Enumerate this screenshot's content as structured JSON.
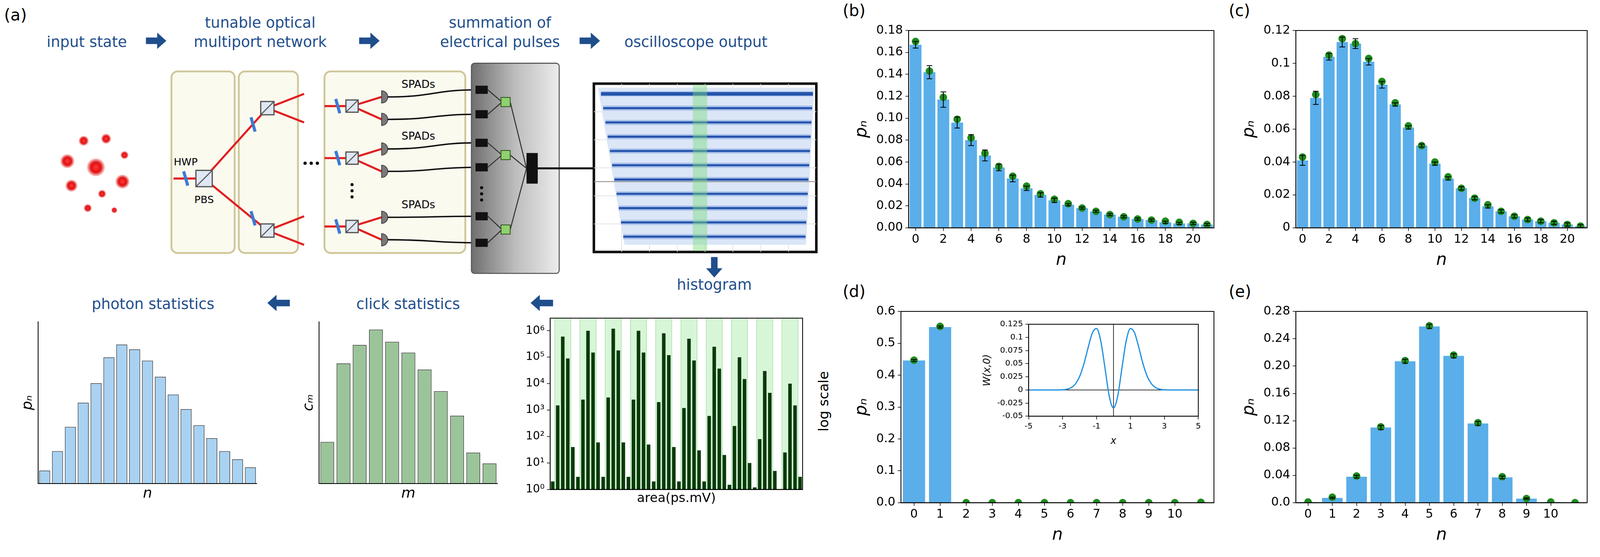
{
  "diagram": {
    "panel_label": "(a)",
    "labels": {
      "input": "input state",
      "network": "tunable optical multiport network",
      "summation": "summation of electrical pulses",
      "oscilloscope": "oscilloscope output",
      "histogram": "histogram",
      "clicks": "click statistics",
      "photons": "photon statistics"
    },
    "hwp": "HWP",
    "pbs": "PBS",
    "detectors": [
      "SPADs",
      "SPADs",
      "SPADs"
    ]
  },
  "chart_data": [
    {
      "type": "bar",
      "x_label": "n",
      "y_label": "pₙ",
      "tick_labels": false,
      "color": "#a9d2f2",
      "categories": [
        null,
        null,
        null,
        null,
        null,
        null,
        null,
        null,
        null,
        null,
        null,
        null,
        null,
        null,
        null,
        null,
        null
      ],
      "values": [
        0.08,
        0.2,
        0.35,
        0.5,
        0.62,
        0.78,
        0.86,
        0.83,
        0.76,
        0.66,
        0.55,
        0.46,
        0.36,
        0.28,
        0.2,
        0.15,
        0.1
      ],
      "ylim": [
        0,
        1
      ]
    },
    {
      "type": "bar",
      "x_label": "m",
      "y_label": "cₘ",
      "tick_labels": false,
      "color": "#9cc49a",
      "categories": [
        null,
        null,
        null,
        null,
        null,
        null,
        null,
        null,
        null,
        null,
        null
      ],
      "values": [
        0.27,
        0.78,
        0.9,
        1.0,
        0.92,
        0.85,
        0.74,
        0.6,
        0.44,
        0.2,
        0.13
      ],
      "ylim": [
        0,
        1.05
      ]
    },
    {
      "type": "bar",
      "x_label": "area(ps.mV)",
      "annotations": [
        "log scale"
      ],
      "log": "y",
      "tick_labels": "y",
      "color": "#0a3a0a",
      "categories": [
        null,
        null,
        null,
        null,
        null,
        null,
        null,
        null,
        null,
        null,
        null,
        null,
        null,
        null,
        null,
        null,
        null,
        null,
        null,
        null,
        null,
        null,
        null,
        null,
        null,
        null,
        null,
        null,
        null,
        null,
        null,
        null,
        null,
        null,
        null,
        null,
        null,
        null,
        null,
        null,
        null,
        null,
        null,
        null,
        null,
        null,
        null,
        null,
        null,
        null
      ],
      "values": [
        2,
        1500,
        600000,
        90000,
        40,
        3,
        2500,
        1000000,
        150000,
        60,
        3,
        3000,
        1200000,
        180000,
        60,
        3,
        2500,
        1000000,
        150000,
        50,
        2,
        2000,
        800000,
        120000,
        40,
        2,
        1200,
        500000,
        75000,
        30,
        2,
        600,
        250000,
        37000,
        20,
        1.5,
        250,
        100000,
        15000,
        10,
        1.2,
        80,
        30000,
        4500,
        5,
        1,
        25,
        10000,
        1500,
        3
      ],
      "ylim": [
        1,
        3000000
      ],
      "yticks": [
        {
          "value": 1,
          "label": "10⁰"
        },
        {
          "value": 10,
          "label": "10¹"
        },
        {
          "value": 100,
          "label": "10²"
        },
        {
          "value": 1000,
          "label": "10³"
        },
        {
          "value": 10000,
          "label": "10⁴"
        },
        {
          "value": 100000,
          "label": "10⁵"
        },
        {
          "value": 1000000,
          "label": "10⁶"
        }
      ]
    },
    {
      "panel": "(b)",
      "type": "bar",
      "x_label": "n",
      "y_label": "pₙ",
      "categories": [
        0,
        1,
        2,
        3,
        4,
        5,
        6,
        7,
        8,
        9,
        10,
        11,
        12,
        13,
        14,
        15,
        16,
        17,
        18,
        19,
        20,
        21
      ],
      "xticks": [
        0,
        2,
        4,
        6,
        8,
        10,
        12,
        14,
        16,
        18,
        20
      ],
      "ylim": [
        0,
        0.18
      ],
      "yticks": [
        {
          "value": 0,
          "label": "0.00"
        },
        0.02,
        0.04,
        0.06,
        0.08,
        {
          "value": 0.1,
          "label": "0.10"
        },
        0.12,
        0.14,
        0.16,
        0.18
      ],
      "series": [
        {
          "type": "bar",
          "color": "#5aaeea",
          "values": [
            0.167,
            0.142,
            0.117,
            0.096,
            0.08,
            0.066,
            0.055,
            0.045,
            0.036,
            0.03,
            0.025,
            0.021,
            0.018,
            0.015,
            0.012,
            0.01,
            0.008,
            0.007,
            0.005,
            0.004,
            0.004,
            0.003
          ],
          "errors": [
            0.003,
            0.006,
            0.007,
            0.005,
            0.005,
            0.005,
            0.003,
            0.003,
            0.002,
            0.002,
            0.002,
            0.001,
            0.001,
            0.001,
            0.001,
            0.001,
            0.001,
            0.001,
            0.001,
            0.001,
            0.001,
            0.001
          ]
        },
        {
          "type": "scatter",
          "marker": "circle",
          "color": "#1e8c1e",
          "values": [
            0.17,
            0.143,
            0.119,
            0.099,
            0.082,
            0.068,
            0.056,
            0.047,
            0.038,
            0.031,
            0.026,
            0.022,
            0.018,
            0.015,
            0.012,
            0.01,
            0.008,
            0.007,
            0.006,
            0.005,
            0.004,
            0.003
          ]
        }
      ]
    },
    {
      "panel": "(c)",
      "type": "bar",
      "x_label": "n",
      "y_label": "pₙ",
      "categories": [
        0,
        1,
        2,
        3,
        4,
        5,
        6,
        7,
        8,
        9,
        10,
        11,
        12,
        13,
        14,
        15,
        16,
        17,
        18,
        19,
        20,
        21
      ],
      "xticks": [
        0,
        2,
        4,
        6,
        8,
        10,
        12,
        14,
        16,
        18,
        20
      ],
      "ylim": [
        0,
        0.12
      ],
      "yticks": [
        0,
        0.02,
        0.04,
        0.06,
        0.08,
        0.1,
        0.12
      ],
      "series": [
        {
          "type": "bar",
          "color": "#5aaeea",
          "values": [
            0.041,
            0.079,
            0.104,
            0.113,
            0.112,
            0.101,
            0.087,
            0.075,
            0.061,
            0.05,
            0.039,
            0.03,
            0.024,
            0.018,
            0.013,
            0.01,
            0.007,
            0.005,
            0.004,
            0.003,
            0.002,
            0.001
          ],
          "errors": [
            0.003,
            0.004,
            0.002,
            0.003,
            0.003,
            0.002,
            0.002,
            0.001,
            0.001,
            0.001,
            0.001,
            0.001,
            0.001,
            0.001,
            0.001,
            0.001,
            0.001,
            0.001,
            0.001,
            0.001,
            0.001,
            0.001
          ]
        },
        {
          "type": "scatter",
          "marker": "circle",
          "color": "#1e8c1e",
          "values": [
            0.043,
            0.081,
            0.105,
            0.115,
            0.112,
            0.103,
            0.089,
            0.076,
            0.062,
            0.05,
            0.04,
            0.031,
            0.024,
            0.018,
            0.014,
            0.01,
            0.007,
            0.005,
            0.004,
            0.003,
            0.002,
            0.001
          ]
        }
      ]
    },
    {
      "panel": "(d)",
      "type": "bar",
      "x_label": "n",
      "y_label": "pₙ",
      "categories": [
        0,
        1,
        2,
        3,
        4,
        5,
        6,
        7,
        8,
        9,
        10,
        11
      ],
      "xticks": [
        0,
        1,
        2,
        3,
        4,
        5,
        6,
        7,
        8,
        9,
        10
      ],
      "ylim": [
        0,
        0.6
      ],
      "yticks": [
        {
          "value": 0,
          "label": "0.0"
        },
        0.1,
        0.2,
        0.3,
        0.4,
        0.5,
        0.6
      ],
      "series": [
        {
          "type": "bar",
          "color": "#5aaeea",
          "values": [
            0.446,
            0.551,
            0.001,
            0.001,
            0,
            0,
            0,
            0,
            0,
            0,
            0,
            0
          ],
          "errors": [
            0.003,
            0.003,
            0,
            0,
            0,
            0,
            0,
            0,
            0,
            0,
            0,
            0
          ]
        },
        {
          "type": "scatter",
          "marker": "circle",
          "color": "#1e8c1e",
          "values": [
            0.447,
            0.553,
            0,
            0,
            0,
            0,
            0,
            0,
            0,
            0,
            0,
            0.001
          ]
        }
      ],
      "inset": {
        "type": "line",
        "x_label": "x",
        "y_label": "W(x,0)",
        "color": "#1f8fe0",
        "x": [
          -5,
          -4,
          -3.5,
          -3,
          -2.75,
          -2.5,
          -2.25,
          -2,
          -1.75,
          -1.5,
          -1.25,
          -1,
          -0.75,
          -0.5,
          -0.25,
          0,
          0.25,
          0.5,
          0.75,
          1,
          1.25,
          1.5,
          1.75,
          2,
          2.25,
          2.5,
          2.75,
          3,
          3.5,
          4,
          5
        ],
        "values": [
          0,
          0,
          0,
          0.0004,
          0.0014,
          0.0042,
          0.0111,
          0.0252,
          0.0488,
          0.0799,
          0.1081,
          0.1169,
          0.0932,
          0.0418,
          -0.0116,
          -0.0344,
          -0.0116,
          0.0418,
          0.0932,
          0.1169,
          0.1081,
          0.0799,
          0.0488,
          0.0252,
          0.0111,
          0.0042,
          0.0014,
          0.0004,
          0,
          0,
          0
        ],
        "xlim": [
          -5,
          5
        ],
        "xticks": [
          -5,
          -3,
          -1,
          1,
          3,
          5
        ],
        "ylim": [
          -0.05,
          0.125
        ],
        "yticks": [
          -0.05,
          -0.025,
          0,
          0.025,
          0.05,
          0.075,
          0.1,
          0.125
        ]
      }
    },
    {
      "panel": "(e)",
      "type": "bar",
      "x_label": "n",
      "y_label": "pₙ",
      "categories": [
        0,
        1,
        2,
        3,
        4,
        5,
        6,
        7,
        8,
        9,
        10,
        11
      ],
      "xticks": [
        0,
        1,
        2,
        3,
        4,
        5,
        6,
        7,
        8,
        9,
        10
      ],
      "ylim": [
        0,
        0.28
      ],
      "yticks": [
        {
          "value": 0,
          "label": "0.0"
        },
        0.04,
        0.08,
        0.12,
        0.16,
        {
          "value": 0.2,
          "label": "0.20"
        },
        0.24,
        0.28
      ],
      "series": [
        {
          "type": "bar",
          "color": "#5aaeea",
          "values": [
            0.001,
            0.007,
            0.038,
            0.11,
            0.207,
            0.258,
            0.215,
            0.116,
            0.037,
            0.006,
            0.001,
            0
          ],
          "errors": [
            0,
            0.001,
            0.002,
            0.003,
            0.003,
            0.003,
            0.003,
            0.003,
            0.002,
            0.001,
            0,
            0
          ]
        },
        {
          "type": "scatter",
          "marker": "circle",
          "color": "#1e8c1e",
          "values": [
            0.001,
            0.008,
            0.039,
            0.111,
            0.208,
            0.259,
            0.216,
            0.117,
            0.038,
            0.006,
            0.001,
            0
          ]
        }
      ]
    }
  ]
}
